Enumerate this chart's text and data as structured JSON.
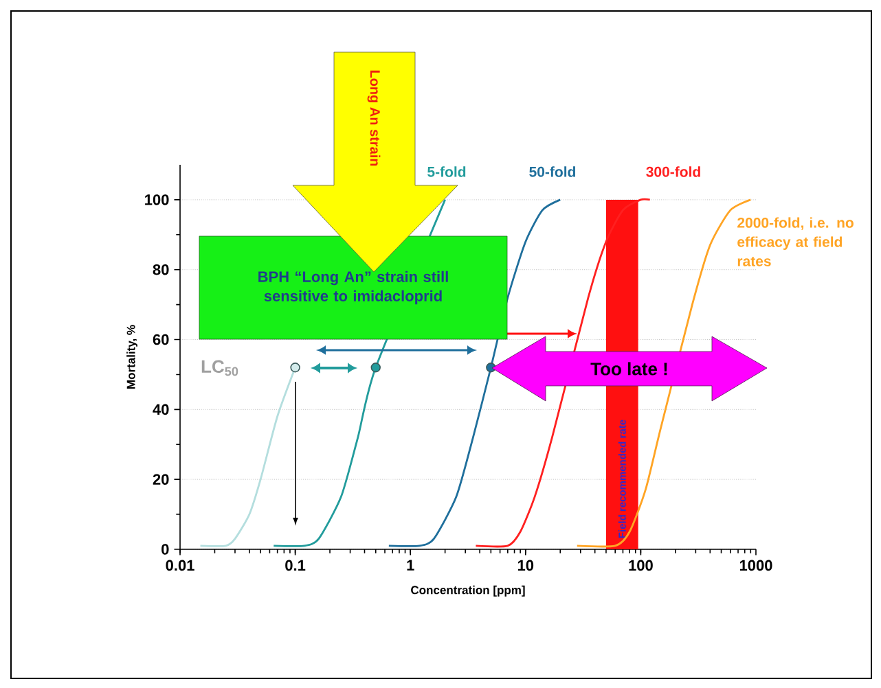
{
  "chart_data": {
    "type": "line",
    "xlabel": "Concentration [ppm]",
    "ylabel": "Mortality, %",
    "log": "x",
    "xlim": [
      0.01,
      1000
    ],
    "xticks": [
      0.01,
      0.1,
      1,
      10,
      100,
      1000
    ],
    "ylim": [
      0,
      110
    ],
    "yticks": [
      0,
      20,
      40,
      60,
      80,
      100
    ],
    "grid": "y",
    "series": [
      {
        "color": "#b4dede",
        "x": [
          0.015,
          0.025,
          0.03,
          0.04,
          0.05,
          0.07,
          0.1
        ],
        "values": [
          1,
          1,
          3,
          10,
          20,
          38,
          52
        ]
      },
      {
        "name": "5-fold",
        "color": "#229c9c",
        "x": [
          0.065,
          0.12,
          0.16,
          0.25,
          0.35,
          0.5,
          0.7,
          1,
          1.4,
          2
        ],
        "values": [
          1,
          1,
          3,
          15,
          32,
          52,
          null,
          null,
          null,
          100
        ]
      },
      {
        "name": "50-fold",
        "color": "#1f6f9c",
        "x": [
          0.65,
          1.2,
          1.6,
          2.5,
          3.5,
          5,
          7,
          10,
          14,
          20
        ],
        "values": [
          1,
          1,
          3,
          15,
          32,
          52,
          72,
          88,
          97,
          100
        ]
      },
      {
        "name": "300-fold",
        "color": "#ff2020",
        "x": [
          3.7,
          7,
          9,
          12,
          17,
          25,
          35,
          50,
          70,
          100,
          120
        ],
        "values": [
          1,
          1,
          5,
          15,
          32,
          null,
          72,
          88,
          97,
          100,
          100
        ]
      },
      {
        "name": "2000-fold, i.e. no efficacy at field rates",
        "color": "#ffa424",
        "x": [
          28,
          60,
          80,
          110,
          150,
          200,
          280,
          400,
          600,
          900
        ],
        "values": [
          1,
          1,
          5,
          17,
          35,
          null,
          70,
          87,
          97,
          100
        ]
      },
      {
        "type": "scatter",
        "marker": "circle",
        "x": [
          0.1,
          0.5,
          5
        ],
        "values": [
          52,
          52,
          52
        ],
        "colors": [
          "#d4ecec",
          "#229c9c",
          "#1f6f9c"
        ]
      }
    ],
    "bands": [
      {
        "axis": "x",
        "from": 50,
        "to": 95,
        "label": "Field recommended rate",
        "color": "#ff1010"
      }
    ],
    "annotations": [
      "LC$_{50}$",
      "BPH “Long An” strain still sensitive to imidacloprid",
      "Long An strain",
      "Too late !"
    ]
  }
}
